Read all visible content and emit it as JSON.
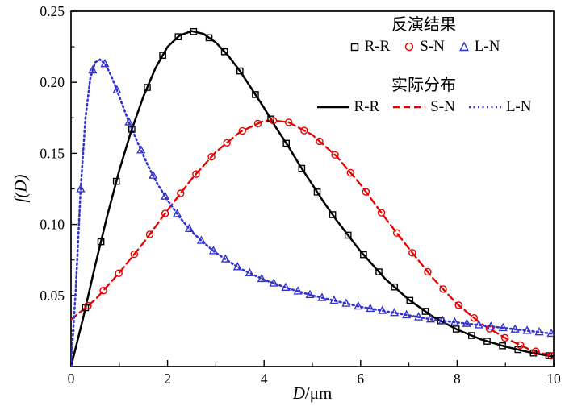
{
  "figure": {
    "background": "#ffffff"
  },
  "axes": {
    "xlabel_var": "D",
    "xlabel_rest": "/μm",
    "ylabel": "f(D)",
    "xlim": [
      0,
      10
    ],
    "ylim": [
      0,
      0.25
    ],
    "xticks": [
      0,
      2,
      4,
      6,
      8,
      10
    ],
    "xtick_labels": [
      "0",
      "2",
      "4",
      "6",
      "8",
      "10"
    ],
    "xticks_minor": [
      1,
      3,
      5,
      7,
      9
    ],
    "yticks": [
      0.05,
      0.1,
      0.15,
      0.2,
      0.25
    ],
    "ytick_labels": [
      "0.05",
      "0.10",
      "0.15",
      "0.20",
      "0.25"
    ],
    "yticks_minor": [
      0.025,
      0.075,
      0.125,
      0.175,
      0.225
    ],
    "axis_color": "#000000"
  },
  "legend": {
    "inversion_title": "反演结果",
    "actual_title": "实际分布",
    "marker_entries": [
      {
        "label": "R-R",
        "marker": "square",
        "color": "#000000"
      },
      {
        "label": "S-N",
        "marker": "circle",
        "color": "#e60000"
      },
      {
        "label": "L-N",
        "marker": "triangle",
        "color": "#3333cc"
      }
    ],
    "line_entries": [
      {
        "label": "R-R",
        "style": "solid",
        "color": "#000000"
      },
      {
        "label": "S-N",
        "style": "dashed",
        "color": "#e60000"
      },
      {
        "label": "L-N",
        "style": "dotted",
        "color": "#3333cc"
      }
    ]
  },
  "chart_data": {
    "type": "line",
    "title": "",
    "xlabel": "D/μm",
    "ylabel": "f(D)",
    "xlim": [
      0,
      10
    ],
    "ylim": [
      0,
      0.25
    ],
    "grid": false,
    "legend_position": "top-right",
    "series": [
      {
        "name": "R-R",
        "color": "#000000",
        "dash": "solid",
        "marker": "square",
        "line": {
          "x": [
            0,
            0.25,
            0.5,
            0.75,
            1,
            1.25,
            1.5,
            1.75,
            2,
            2.25,
            2.5,
            2.75,
            3,
            3.25,
            3.5,
            3.75,
            4,
            4.25,
            4.5,
            4.75,
            5,
            5.25,
            5.5,
            5.75,
            6,
            6.5,
            7,
            7.5,
            8,
            8.5,
            9,
            9.5,
            10
          ],
          "y": [
            0,
            0.034,
            0.071,
            0.106,
            0.138,
            0.166,
            0.19,
            0.21,
            0.225,
            0.233,
            0.236,
            0.234,
            0.228,
            0.219,
            0.208,
            0.195,
            0.182,
            0.168,
            0.155,
            0.141,
            0.128,
            0.115,
            0.103,
            0.092,
            0.081,
            0.062,
            0.047,
            0.035,
            0.026,
            0.019,
            0.014,
            0.01,
            0.007
          ]
        },
        "markers_x": [
          0.3,
          0.62,
          0.94,
          1.26,
          1.58,
          1.9,
          2.22,
          2.54,
          2.86,
          3.18,
          3.5,
          3.82,
          4.14,
          4.46,
          4.78,
          5.1,
          5.42,
          5.74,
          6.06,
          6.38,
          6.7,
          7.02,
          7.34,
          7.66,
          7.98,
          8.3,
          8.62,
          8.94,
          9.26,
          9.58,
          9.9
        ]
      },
      {
        "name": "S-N",
        "color": "#e60000",
        "dash": "dashed",
        "marker": "circle",
        "line": {
          "x": [
            0,
            0.5,
            1,
            1.5,
            2,
            2.5,
            3,
            3.5,
            4,
            4.2,
            4.5,
            5,
            5.5,
            6,
            6.5,
            7,
            7.5,
            8,
            8.5,
            9,
            9.5,
            10
          ],
          "y": [
            0.033,
            0.047,
            0.066,
            0.087,
            0.11,
            0.132,
            0.151,
            0.165,
            0.173,
            0.173,
            0.172,
            0.163,
            0.148,
            0.128,
            0.105,
            0.083,
            0.062,
            0.044,
            0.03,
            0.02,
            0.012,
            0.007
          ]
        },
        "markers_x": [
          0.35,
          0.67,
          0.99,
          1.31,
          1.63,
          1.95,
          2.27,
          2.59,
          2.91,
          3.23,
          3.55,
          3.87,
          4.19,
          4.51,
          4.83,
          5.15,
          5.47,
          5.79,
          6.11,
          6.43,
          6.75,
          7.07,
          7.39,
          7.71,
          8.03,
          8.35,
          8.67,
          8.99,
          9.31,
          9.63,
          9.95
        ]
      },
      {
        "name": "L-N",
        "color": "#3333cc",
        "dash": "dotted",
        "marker": "triangle",
        "line": {
          "x": [
            0,
            0.1,
            0.2,
            0.3,
            0.4,
            0.5,
            0.6,
            0.7,
            0.8,
            0.9,
            1,
            1.2,
            1.4,
            1.6,
            1.8,
            2,
            2.25,
            2.5,
            2.75,
            3,
            3.5,
            4,
            4.5,
            5,
            5.5,
            6,
            6.5,
            7,
            7.5,
            8,
            8.5,
            9,
            9.5,
            10
          ],
          "y": [
            0,
            0.055,
            0.125,
            0.175,
            0.203,
            0.214,
            0.216,
            0.213,
            0.207,
            0.199,
            0.19,
            0.172,
            0.156,
            0.141,
            0.128,
            0.117,
            0.105,
            0.095,
            0.087,
            0.08,
            0.069,
            0.061,
            0.055,
            0.05,
            0.046,
            0.042,
            0.039,
            0.036,
            0.033,
            0.031,
            0.029,
            0.027,
            0.025,
            0.023
          ]
        },
        "markers_x": [
          0.2,
          0.45,
          0.7,
          0.95,
          1.2,
          1.45,
          1.7,
          1.95,
          2.2,
          2.45,
          2.7,
          2.95,
          3.2,
          3.45,
          3.7,
          3.95,
          4.2,
          4.45,
          4.7,
          4.95,
          5.2,
          5.45,
          5.7,
          5.95,
          6.2,
          6.45,
          6.7,
          6.95,
          7.2,
          7.45,
          7.7,
          7.95,
          8.2,
          8.45,
          8.7,
          8.95,
          9.2,
          9.45,
          9.7,
          9.95
        ]
      }
    ]
  }
}
